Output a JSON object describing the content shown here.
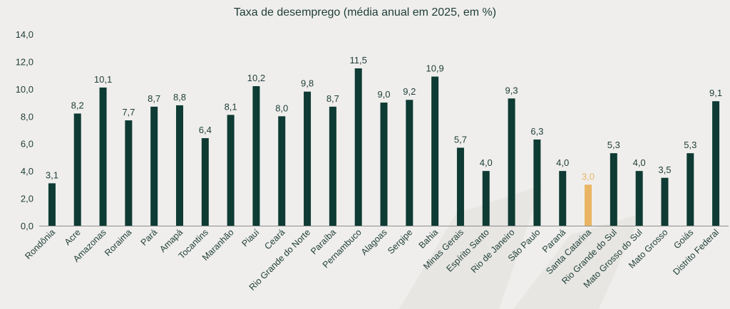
{
  "chart_data": {
    "type": "bar",
    "title": "Taxa de desemprego (média anual em 2025, em %)",
    "categories": [
      "Rondônia",
      "Acre",
      "Amazonas",
      "Roraima",
      "Pará",
      "Amapá",
      "Tocantins",
      "Maranhão",
      "Piauí",
      "Ceará",
      "Rio Grande do Norte",
      "Paraíba",
      "Pernambuco",
      "Alagoas",
      "Sergipe",
      "Bahia",
      "Minas Gerais",
      "Espírito Santo",
      "Rio de Janeiro",
      "São Paulo",
      "Paraná",
      "Santa Catarina",
      "Rio Grande do Sul",
      "Mato Grosso do Sul",
      "Mato Grosso",
      "Goiás",
      "Distrito Federal"
    ],
    "values": [
      3.1,
      8.2,
      10.1,
      7.7,
      8.7,
      8.8,
      6.4,
      8.1,
      10.2,
      8.0,
      9.8,
      8.7,
      11.5,
      9.0,
      9.2,
      10.9,
      5.7,
      4.0,
      9.3,
      6.3,
      4.0,
      3.0,
      5.3,
      4.0,
      3.5,
      5.3,
      9.1
    ],
    "labels": [
      "3,1",
      "8,2",
      "10,1",
      "7,7",
      "8,7",
      "8,8",
      "6,4",
      "8,1",
      "10,2",
      "8,0",
      "9,8",
      "8,7",
      "11,5",
      "9,0",
      "9,2",
      "10,9",
      "5,7",
      "4,0",
      "9,3",
      "6,3",
      "4,0",
      "3,0",
      "5,3",
      "4,0",
      "3,5",
      "5,3",
      "9,1"
    ],
    "highlight": "Santa Catarina",
    "ylim": [
      0,
      14
    ],
    "yticks": [
      "0,0",
      "2,0",
      "4,0",
      "6,0",
      "8,0",
      "10,0",
      "12,0",
      "14,0"
    ],
    "xlabel": "",
    "ylabel": "",
    "grid": false,
    "colors": {
      "bar": "#0e3b34",
      "highlight": "#e9b565",
      "text": "#1e3d37",
      "axis": "#8c8c8c"
    }
  }
}
